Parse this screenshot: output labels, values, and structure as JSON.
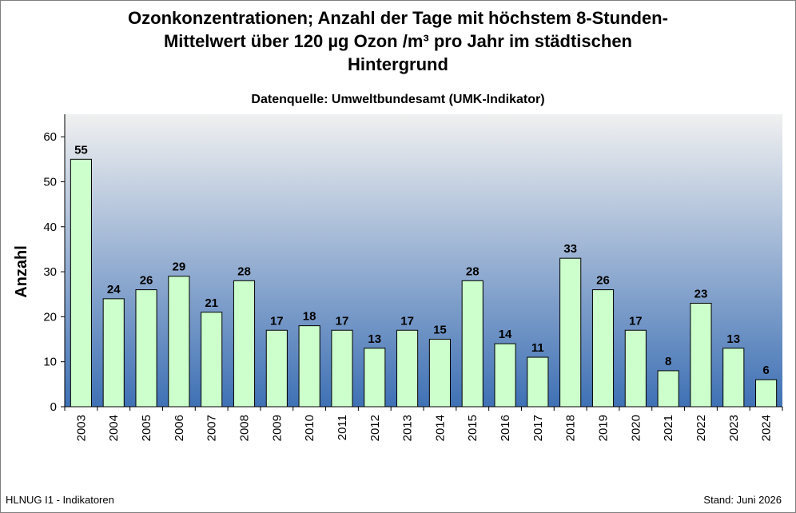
{
  "title_lines": [
    "Ozonkonzentrationen; Anzahl der Tage mit höchstem 8-Stunden-",
    "Mittelwert über 120 µg Ozon /m³ pro Jahr im städtischen",
    "Hintergrund"
  ],
  "subtitle": "Datenquelle: Umweltbundesamt (UMK-Indikator)",
  "footer": {
    "left": "HLNUG I1 - Indikatoren",
    "right": "Stand: Juni 2026"
  },
  "colors": {
    "bar_fill": "#ccffcc",
    "bar_stroke": "#000000",
    "plot_top": "#f0f0f0",
    "plot_bottom": "#3f71b5"
  },
  "chart_data": {
    "type": "bar",
    "title": "Ozonkonzentrationen; Anzahl der Tage mit höchstem 8-Stunden-Mittelwert über 120 µg Ozon /m³ pro Jahr im städtischen Hintergrund",
    "subtitle": "Datenquelle: Umweltbundesamt (UMK-Indikator)",
    "xlabel": "",
    "ylabel": "Anzahl",
    "categories": [
      "2003",
      "2004",
      "2005",
      "2006",
      "2007",
      "2008",
      "2009",
      "2010",
      "2011",
      "2012",
      "2013",
      "2014",
      "2015",
      "2016",
      "2017",
      "2018",
      "2019",
      "2020",
      "2021",
      "2022",
      "2023",
      "2024"
    ],
    "values": [
      55,
      24,
      26,
      29,
      21,
      28,
      17,
      18,
      17,
      13,
      17,
      15,
      28,
      14,
      11,
      33,
      26,
      17,
      8,
      23,
      13,
      6
    ],
    "ylim": [
      0,
      65
    ],
    "yticks": [
      0,
      10,
      20,
      30,
      40,
      50,
      60
    ],
    "data_labels": true,
    "grid": false,
    "legend": "none"
  }
}
